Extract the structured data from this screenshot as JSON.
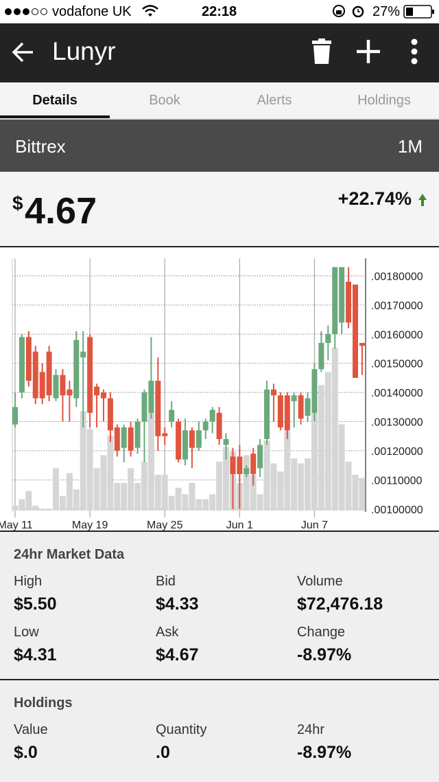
{
  "status_bar": {
    "carrier": "vodafone UK",
    "time": "22:18",
    "battery": "27%"
  },
  "app_bar": {
    "title": "Lunyr"
  },
  "tabs": [
    "Details",
    "Book",
    "Alerts",
    "Holdings"
  ],
  "exchange": {
    "name": "Bittrex",
    "range": "1M"
  },
  "price": {
    "currency": "$",
    "amount": "4.67",
    "change": "+22.74%"
  },
  "chart_data": {
    "type": "candlestick",
    "categories": [
      "May 11",
      null,
      null,
      null,
      null,
      null,
      null,
      null,
      null,
      null,
      null,
      "May 19",
      null,
      null,
      null,
      null,
      null,
      null,
      null,
      null,
      null,
      null,
      "May 25",
      null,
      null,
      null,
      null,
      null,
      null,
      null,
      null,
      null,
      null,
      "Jun 1",
      null,
      null,
      null,
      null,
      null,
      null,
      null,
      null,
      null,
      null,
      "Jun 7",
      null,
      null,
      null,
      null,
      null,
      null,
      null
    ],
    "open": [
      0.00129,
      0.0014,
      0.00159,
      0.00154,
      0.00147,
      0.00154,
      0.00138,
      0.00146,
      0.00141,
      0.00138,
      0.00152,
      0.00159,
      0.00142,
      0.0014,
      0.00138,
      0.00128,
      0.00121,
      0.00128,
      0.00121,
      0.0013,
      0.00133,
      0.00144,
      0.00126,
      0.0013,
      0.0013,
      0.00117,
      0.00127,
      0.00121,
      0.00127,
      0.0013,
      0.00133,
      0.00122,
      0.00118,
      0.00118,
      0.00112,
      0.00119,
      0.00114,
      0.00124,
      0.00141,
      0.00139,
      0.00139,
      0.00137,
      0.00139,
      0.00132,
      0.00133,
      0.00148,
      0.00157,
      0.0016,
      0.00164,
      0.00178,
      0.00177,
      0.00157
    ],
    "high": [
      0.0014,
      0.0016,
      0.00161,
      0.00156,
      0.0015,
      0.00156,
      0.00148,
      0.00148,
      0.00144,
      0.00161,
      0.00161,
      0.0016,
      0.00143,
      0.00141,
      0.0014,
      0.00129,
      0.00129,
      0.0013,
      0.00131,
      0.00141,
      0.00159,
      0.00152,
      0.00128,
      0.00137,
      0.00131,
      0.00131,
      0.00128,
      0.0013,
      0.00131,
      0.00135,
      0.00135,
      0.00126,
      0.00121,
      0.00122,
      0.00115,
      0.00121,
      0.00124,
      0.00144,
      0.00143,
      0.0014,
      0.0014,
      0.0014,
      0.0014,
      0.0014,
      0.0015,
      0.00161,
      0.00163,
      0.00183,
      0.00183,
      0.00183,
      0.00177,
      0.00157
    ],
    "low": [
      0.00128,
      0.00138,
      0.00142,
      0.00136,
      0.00136,
      0.00137,
      0.00137,
      0.0013,
      0.0013,
      0.00135,
      0.00128,
      0.00128,
      0.00128,
      0.0013,
      0.00123,
      0.00118,
      0.00116,
      0.00118,
      0.00119,
      0.00116,
      0.00131,
      0.0012,
      0.00122,
      0.00128,
      0.00116,
      0.00115,
      0.00114,
      0.0012,
      0.00124,
      0.00126,
      0.00122,
      0.00117,
      0.001,
      0.001,
      0.00111,
      0.00108,
      0.00111,
      0.00122,
      0.0013,
      0.00127,
      0.00124,
      0.00128,
      0.00129,
      0.0013,
      0.0013,
      0.00147,
      0.00151,
      0.00155,
      0.0016,
      0.00162,
      0.00145,
      0.00146
    ],
    "close": [
      0.00135,
      0.00159,
      0.00144,
      0.00138,
      0.00138,
      0.00139,
      0.00146,
      0.00139,
      0.00139,
      0.00158,
      0.00154,
      0.00133,
      0.00139,
      0.00138,
      0.00127,
      0.0012,
      0.00128,
      0.0012,
      0.0013,
      0.0014,
      0.00144,
      0.00125,
      0.00125,
      0.00134,
      0.00117,
      0.00127,
      0.00121,
      0.00127,
      0.0013,
      0.00134,
      0.00124,
      0.00124,
      0.00112,
      0.00112,
      0.00114,
      0.00112,
      0.00122,
      0.00141,
      0.00139,
      0.00128,
      0.00127,
      0.00139,
      0.00131,
      0.00138,
      0.00148,
      0.00157,
      0.0016,
      0.00183,
      0.00183,
      0.00164,
      0.00145,
      0.00156
    ],
    "volume": [
      3,
      7,
      12,
      3,
      1,
      1,
      26,
      9,
      23,
      13,
      61,
      50,
      26,
      34,
      46,
      17,
      17,
      26,
      17,
      30,
      60,
      22,
      22,
      9,
      14,
      10,
      17,
      7,
      7,
      10,
      30,
      39,
      36,
      17,
      34,
      22,
      10,
      43,
      29,
      24,
      49,
      32,
      29,
      32,
      60,
      77,
      85,
      100,
      53,
      30,
      22,
      20
    ],
    "ylim": [
      0.00099,
      0.00186
    ],
    "yticks": [
      {
        "value": 0.001,
        "label": ".00100000"
      },
      {
        "value": 0.0011,
        "label": ".00110000"
      },
      {
        "value": 0.0012,
        "label": ".00120000"
      },
      {
        "value": 0.0013,
        "label": ".00130000"
      },
      {
        "value": 0.0014,
        "label": ".00140000"
      },
      {
        "value": 0.0015,
        "label": ".00150000"
      },
      {
        "value": 0.0016,
        "label": ".00160000"
      },
      {
        "value": 0.0017,
        "label": ".00170000"
      },
      {
        "value": 0.0018,
        "label": ".00180000"
      }
    ],
    "grid": true,
    "up_color": "#6aa97c",
    "down_color": "#e0553f",
    "volume_color": "#d6d6d6"
  },
  "market_data": {
    "title": "24hr Market Data",
    "items": [
      {
        "label": "High",
        "value": "$5.50"
      },
      {
        "label": "Bid",
        "value": "$4.33"
      },
      {
        "label": "Volume",
        "value": "$72,476.18"
      },
      {
        "label": "Low",
        "value": "$4.31"
      },
      {
        "label": "Ask",
        "value": "$4.67"
      },
      {
        "label": "Change",
        "value": "-8.97%"
      }
    ]
  },
  "holdings": {
    "title": "Holdings",
    "items": [
      {
        "label": "Value",
        "value": "$.0"
      },
      {
        "label": "Quantity",
        "value": ".0"
      },
      {
        "label": "24hr",
        "value": "-8.97%"
      }
    ]
  }
}
